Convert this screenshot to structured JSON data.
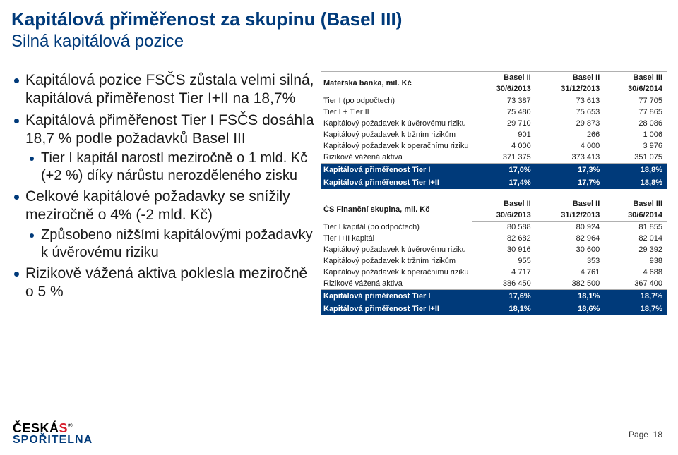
{
  "title": "Kapitálová přiměřenost za skupinu (Basel III)",
  "subtitle": "Silná kapitálová pozice",
  "bullets": {
    "b1": "Kapitálová pozice FSČS zůstala velmi silná, kapitálová přiměřenost Tier I+II na 18,7%",
    "b2": "Kapitálová přiměřenost Tier I FSČS dosáhla 18,7 % podle požadavků Basel III",
    "b2_s1": "Tier I kapitál narostl meziročně o 1 mld. Kč (+2 %) díky nárůstu nerozděleného zisku",
    "b3": "Celkové kapitálové požadavky se snížily meziročně o 4% (-2 mld. Kč)",
    "b3_s1": "Způsobeno nižšími kapitálovými požadavky k úvěrovému riziku",
    "b4": "Rizikově vážená aktiva poklesla meziročně o 5 %"
  },
  "table1": {
    "header_label": "Mateřská banka, mil. Kč",
    "basel2_1": "Basel II",
    "basel2_2": "Basel II",
    "basel3": "Basel III",
    "d1": "30/6/2013",
    "d2": "31/12/2013",
    "d3": "30/6/2014",
    "rows": [
      {
        "l": "Tier I (po odpočtech)",
        "c1": "73 387",
        "c2": "73 613",
        "c3": "77 705"
      },
      {
        "l": "Tier I + Tier II",
        "c1": "75 480",
        "c2": "75 653",
        "c3": "77 865"
      },
      {
        "l": "Kapitálový požadavek k úvěrovému riziku",
        "c1": "29 710",
        "c2": "29 873",
        "c3": "28 086"
      },
      {
        "l": "Kapitálový požadavek k tržním rizikům",
        "c1": "901",
        "c2": "266",
        "c3": "1 006"
      },
      {
        "l": "Kapitálový požadavek k operačnímu riziku",
        "c1": "4 000",
        "c2": "4 000",
        "c3": "3 976"
      },
      {
        "l": "Rizikově vážená aktiva",
        "c1": "371 375",
        "c2": "373 413",
        "c3": "351 075"
      }
    ],
    "hl1": {
      "l": "Kapitálová přiměřenost Tier I",
      "c1": "17,0%",
      "c2": "17,3%",
      "c3": "18,8%"
    },
    "hl2": {
      "l": "Kapitálová přiměřenost Tier I+II",
      "c1": "17,4%",
      "c2": "17,7%",
      "c3": "18,8%"
    }
  },
  "table2": {
    "header_label": "ČS Finanční skupina, mil. Kč",
    "basel2_1": "Basel II",
    "basel2_2": "Basel II",
    "basel3": "Basel III",
    "d1": "30/6/2013",
    "d2": "31/12/2013",
    "d3": "30/6/2014",
    "rows": [
      {
        "l": "Tier I kapitál (po odpočtech)",
        "c1": "80 588",
        "c2": "80 924",
        "c3": "81 855"
      },
      {
        "l": "Tier I+II kapitál",
        "c1": "82 682",
        "c2": "82 964",
        "c3": "82 014"
      },
      {
        "l": "Kapitálový požadavek k úvěrovému riziku",
        "c1": "30 916",
        "c2": "30 600",
        "c3": "29 392"
      },
      {
        "l": "Kapitálový požadavek k tržním rizikům",
        "c1": "955",
        "c2": "353",
        "c3": "938"
      },
      {
        "l": "Kapitálový požadavek k operačnímu riziku",
        "c1": "4 717",
        "c2": "4 761",
        "c3": "4 688"
      },
      {
        "l": "Rizikově vážená aktiva",
        "c1": "386 450",
        "c2": "382 500",
        "c3": "367 400"
      }
    ],
    "hl1": {
      "l": "Kapitálová přiměřenost Tier I",
      "c1": "17,6%",
      "c2": "18,1%",
      "c3": "18,7%"
    },
    "hl2": {
      "l": "Kapitálová přiměřenost Tier I+II",
      "c1": "18,1%",
      "c2": "18,6%",
      "c3": "18,7%"
    }
  },
  "logo": {
    "line1a": "ČESKÁ",
    "line1b": "S",
    "reg": "®",
    "line2": "SPOŘITELNA"
  },
  "page_label": "Page",
  "page_no": "18"
}
